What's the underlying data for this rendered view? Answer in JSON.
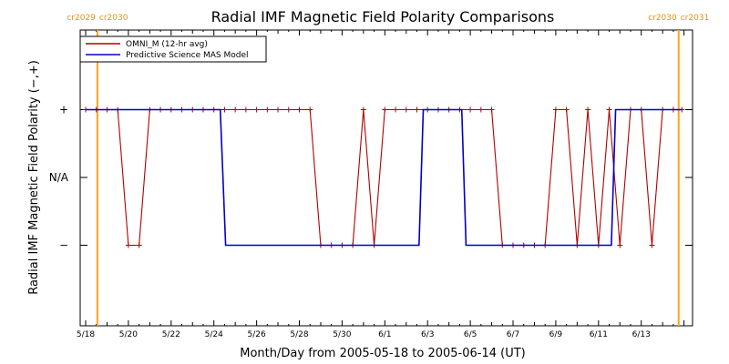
{
  "chart_data": {
    "type": "line",
    "title": "Radial IMF Magnetic Field Polarity Comparisons",
    "xlabel": "Month/Day from 2005-05-18 to 2005-06-14 (UT)",
    "ylabel": "Radial IMF Magnetic Field Polarity (−,+)",
    "x_tick_labels": [
      "5/18",
      "5/20",
      "5/22",
      "5/24",
      "5/26",
      "5/28",
      "5/30",
      "6/1",
      "6/3",
      "6/5",
      "6/7",
      "6/9",
      "6/11",
      "6/13"
    ],
    "y_categories": [
      "+",
      "N/A",
      "−"
    ],
    "y_values_meaning": {
      "1": "+",
      "0": "N/A",
      "-1": "−"
    },
    "xlim": [
      0,
      27.9
    ],
    "ylim": [
      -2,
      2
    ],
    "carrington_rotations": [
      {
        "x": 0.55,
        "left_label": "cr2029",
        "right_label": "cr2030",
        "color": "#ffa319"
      },
      {
        "x": 27.75,
        "left_label": "cr2030",
        "right_label": "cr2031",
        "color": "#ffa319"
      }
    ],
    "series": [
      {
        "name": "OMNI_M (12-hr avg)",
        "color": "#b00000",
        "marker": "plus",
        "x": [
          0.0,
          0.5,
          1.0,
          1.5,
          2.0,
          2.5,
          3.0,
          3.5,
          4.0,
          4.5,
          5.0,
          5.5,
          6.0,
          6.5,
          7.0,
          7.5,
          8.0,
          8.5,
          9.0,
          9.5,
          10.0,
          10.5,
          11.0,
          11.5,
          12.0,
          12.5,
          13.0,
          13.5,
          14.0,
          14.5,
          15.0,
          15.5,
          16.0,
          16.5,
          17.0,
          17.5,
          18.0,
          18.5,
          19.0,
          19.5,
          20.0,
          20.5,
          21.0,
          21.5,
          22.0,
          22.5,
          23.0,
          23.5,
          24.0,
          24.5,
          25.0,
          25.5,
          26.0,
          26.5,
          27.0,
          27.5,
          27.9
        ],
        "y": [
          1,
          1,
          1,
          1,
          -1,
          -1,
          1,
          1,
          1,
          1,
          1,
          1,
          1,
          1,
          1,
          1,
          1,
          1,
          1,
          1,
          1,
          1,
          -1,
          -1,
          -1,
          -1,
          1,
          -1,
          1,
          1,
          1,
          1,
          1,
          1,
          1,
          1,
          1,
          1,
          1,
          -1,
          -1,
          -1,
          -1,
          -1,
          1,
          1,
          -1,
          1,
          -1,
          1,
          -1,
          1,
          1,
          -1,
          1,
          1,
          1
        ]
      },
      {
        "name": "Predictive Science MAS Model",
        "color": "#0000c8",
        "x": [
          0.0,
          6.3,
          6.55,
          15.6,
          15.8,
          17.6,
          17.8,
          24.6,
          24.8,
          27.9
        ],
        "y": [
          1,
          1,
          -1,
          -1,
          1,
          1,
          -1,
          -1,
          1,
          1
        ]
      }
    ],
    "legend": {
      "position": "top-left",
      "entries": [
        "OMNI_M (12-hr avg)",
        "Predictive Science MAS Model"
      ]
    }
  }
}
